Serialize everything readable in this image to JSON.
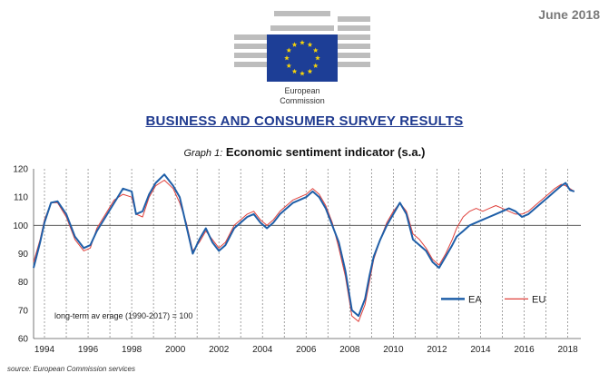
{
  "header": {
    "date": "June 2018",
    "logo_text": [
      "European",
      "Commission"
    ],
    "logo_icon": "eu-flag-icon",
    "colors": {
      "title_blue": "#1f3a8f",
      "flag_blue": "#1d3e96",
      "star_yellow": "#f5d30a"
    }
  },
  "report_title": "BUSINESS AND CONSUMER SURVEY RESULTS",
  "graph_title_prefix": "Graph 1:",
  "graph_title": "Economic sentiment indicator (s.a.)",
  "source": "source: European Commission services",
  "chart_data": {
    "type": "line",
    "title": "Economic sentiment indicator (s.a.)",
    "xlabel": "",
    "ylabel": "",
    "ylim": [
      60,
      120
    ],
    "yticks": [
      60,
      70,
      80,
      90,
      100,
      110,
      120
    ],
    "xlim": [
      1993.5,
      2018.6
    ],
    "xticks": [
      "1994",
      "1996",
      "1998",
      "2000",
      "2002",
      "2004",
      "2006",
      "2008",
      "2010",
      "2012",
      "2014",
      "2016",
      "2018"
    ],
    "grid": "vertical dotted lines at each year",
    "reference_line": {
      "y": 100,
      "label": "long-term av erage (1990-2017) = 100"
    },
    "legend": "bottom-right",
    "series": [
      {
        "name": "EA",
        "color": "#1f5fa8",
        "x": [
          1993.5,
          1993.8,
          1994.0,
          1994.3,
          1994.6,
          1995.0,
          1995.4,
          1995.8,
          1996.1,
          1996.4,
          1996.8,
          1997.2,
          1997.6,
          1998.0,
          1998.2,
          1998.5,
          1998.8,
          1999.1,
          1999.5,
          1999.9,
          2000.2,
          2000.5,
          2000.8,
          2001.1,
          2001.4,
          2001.7,
          2002.0,
          2002.3,
          2002.7,
          2003.0,
          2003.3,
          2003.6,
          2003.9,
          2004.2,
          2004.5,
          2004.8,
          2005.1,
          2005.4,
          2005.7,
          2006.0,
          2006.3,
          2006.6,
          2006.9,
          2007.2,
          2007.5,
          2007.8,
          2008.1,
          2008.4,
          2008.7,
          2008.9,
          2009.1,
          2009.4,
          2009.7,
          2010.0,
          2010.3,
          2010.6,
          2010.9,
          2011.2,
          2011.5,
          2011.8,
          2012.1,
          2012.4,
          2012.7,
          2012.9,
          2013.2,
          2013.5,
          2013.8,
          2014.1,
          2014.4,
          2014.7,
          2015.0,
          2015.3,
          2015.6,
          2015.9,
          2016.2,
          2016.5,
          2016.8,
          2017.1,
          2017.4,
          2017.7,
          2017.9,
          2018.1,
          2018.3
        ],
        "values": [
          85,
          94,
          101,
          108,
          108.5,
          104,
          96,
          92,
          93,
          98,
          103,
          108,
          113,
          112,
          104,
          105,
          111,
          115,
          118,
          114,
          110,
          100,
          90,
          95,
          99,
          94,
          91,
          93,
          99,
          101,
          103,
          104,
          101,
          99,
          101,
          104,
          106,
          108,
          109,
          110,
          112,
          110,
          106,
          100,
          94,
          84,
          70,
          68,
          74,
          82,
          89,
          95,
          100,
          104,
          108,
          104,
          95,
          93,
          91,
          87,
          85,
          89,
          93,
          96,
          98,
          100,
          101,
          102,
          103,
          104,
          105,
          106,
          105,
          103,
          104,
          106,
          108,
          110,
          112,
          114,
          115,
          112.5,
          112
        ]
      },
      {
        "name": "EU",
        "color": "#e0413c",
        "x": [
          1993.5,
          1993.8,
          1994.0,
          1994.3,
          1994.6,
          1995.0,
          1995.4,
          1995.8,
          1996.1,
          1996.4,
          1996.8,
          1997.2,
          1997.6,
          1998.0,
          1998.2,
          1998.5,
          1998.8,
          1999.1,
          1999.5,
          1999.9,
          2000.2,
          2000.5,
          2000.8,
          2001.1,
          2001.4,
          2001.7,
          2002.0,
          2002.3,
          2002.7,
          2003.0,
          2003.3,
          2003.6,
          2003.9,
          2004.2,
          2004.5,
          2004.8,
          2005.1,
          2005.4,
          2005.7,
          2006.0,
          2006.3,
          2006.6,
          2006.9,
          2007.2,
          2007.5,
          2007.8,
          2008.1,
          2008.4,
          2008.7,
          2008.9,
          2009.1,
          2009.4,
          2009.7,
          2010.0,
          2010.3,
          2010.6,
          2010.9,
          2011.2,
          2011.5,
          2011.8,
          2012.1,
          2012.4,
          2012.7,
          2012.9,
          2013.2,
          2013.5,
          2013.8,
          2014.1,
          2014.4,
          2014.7,
          2015.0,
          2015.3,
          2015.6,
          2015.9,
          2016.2,
          2016.5,
          2016.8,
          2017.1,
          2017.4,
          2017.7,
          2017.9,
          2018.1,
          2018.3
        ],
        "values": [
          87,
          95,
          102,
          108,
          108,
          103,
          95,
          91,
          92,
          99,
          104,
          109,
          111,
          110,
          104,
          103,
          110,
          114,
          116,
          113,
          108,
          101,
          91,
          94,
          98,
          95,
          92,
          94,
          100,
          102,
          104,
          105,
          102,
          100,
          102,
          105,
          107,
          109,
          110,
          111,
          113,
          111,
          107,
          101,
          92,
          82,
          68,
          66,
          72,
          80,
          88,
          95,
          101,
          105,
          108,
          105,
          97,
          95,
          92,
          88,
          86,
          90,
          95,
          99,
          103,
          105,
          106,
          105,
          106,
          107,
          106,
          105,
          104,
          104,
          105,
          107,
          109,
          111,
          113,
          114.5,
          114,
          113,
          112
        ]
      }
    ]
  }
}
